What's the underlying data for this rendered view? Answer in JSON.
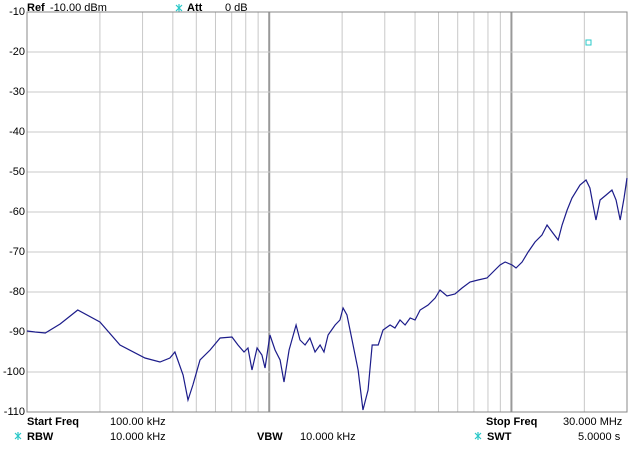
{
  "chart_data": {
    "type": "line",
    "x": [
      100000,
      108000,
      119000,
      137000,
      162000,
      200000,
      242000,
      307000,
      354000,
      389000,
      408000,
      441000,
      462000,
      484000,
      518000,
      570000,
      627000,
      702000,
      743000,
      787000,
      817000,
      849000,
      891000,
      933000,
      961000,
      1007000,
      1057000,
      1109000,
      1151000,
      1208000,
      1291000,
      1340000,
      1406000,
      1472000,
      1546000,
      1622000,
      1683000,
      1750000,
      1871000,
      1959000,
      2018000,
      2094000,
      2198000,
      2328000,
      2438000,
      2559000,
      2661000,
      2818000,
      2951000,
      3155000,
      3304000,
      3467000,
      3639000,
      3819000,
      4000000,
      4198000,
      4529000,
      4842000,
      5070000,
      5420000,
      5848000,
      6252000,
      6745000,
      7278000,
      7925000,
      8551000,
      8974000,
      9418000,
      10068000,
      10447000,
      11066000,
      11722000,
      12513000,
      13366000,
      14029000,
      14724000,
      15596000,
      16186000,
      16982000,
      17783000,
      19187000,
      20323000,
      21086000,
      21727000,
      22336000,
      23227000,
      24604000,
      26002000,
      27040000,
      28119000,
      29174000,
      30000000
    ],
    "series": [
      {
        "color": "#1c1c8a",
        "values": [
          -89.75,
          -90,
          -90.25,
          -88,
          -84.5,
          -87.5,
          -93.25,
          -96.5,
          -97.5,
          -96.5,
          -95,
          -100.75,
          -107,
          -103.25,
          -97,
          -94.5,
          -91.5,
          -91.25,
          -93.25,
          -95,
          -94,
          -99.5,
          -94,
          -95.75,
          -99,
          -90.75,
          -94.5,
          -97,
          -102.5,
          -94.5,
          -88.25,
          -92,
          -93.25,
          -91.5,
          -95,
          -93.25,
          -95,
          -90.75,
          -88.25,
          -87,
          -84,
          -85.75,
          -92,
          -99.5,
          -109.5,
          -104.5,
          -93.25,
          -93.25,
          -89.5,
          -88.25,
          -89,
          -87,
          -88.25,
          -86.5,
          -87,
          -84.5,
          -83.25,
          -81.5,
          -79.5,
          -81,
          -80.5,
          -79,
          -77.5,
          -77,
          -76.5,
          -74.5,
          -73.25,
          -72.5,
          -73.25,
          -74,
          -72.5,
          -70,
          -67.5,
          -65.75,
          -63.25,
          -65,
          -67,
          -63.25,
          -59.5,
          -56.5,
          -53.25,
          -52,
          -54,
          -58.25,
          -62,
          -57,
          -55.75,
          -54.5,
          -57,
          -62,
          -56.5,
          -51.5
        ]
      }
    ],
    "xlim": [
      100000,
      30000000
    ],
    "x_log_scale": true,
    "x_grid": [
      100000,
      200000,
      300000,
      400000,
      500000,
      600000,
      700000,
      800000,
      900000,
      1000000,
      2000000,
      3000000,
      4000000,
      5000000,
      6000000,
      7000000,
      8000000,
      9000000,
      10000000,
      20000000,
      30000000
    ],
    "ylim": [
      -110,
      -10
    ],
    "yticks": [
      -10,
      -20,
      -30,
      -40,
      -50,
      -60,
      -70,
      -80,
      -90,
      -100,
      -110
    ],
    "grid": true
  },
  "header": {
    "ref_label": "Ref",
    "ref_value": "-10.00 dBm",
    "att_label": "Att",
    "att_value": "0 dB"
  },
  "footer": {
    "start_label": "Start Freq",
    "start_value": "100.00 kHz",
    "stop_label": "Stop Freq",
    "stop_value": "30.000 MHz",
    "rbw_label": "RBW",
    "rbw_value": "10.000 kHz",
    "vbw_label": "VBW",
    "vbw_value": "10.000 kHz",
    "swt_label": "SWT",
    "swt_value": "5.0000 s"
  }
}
